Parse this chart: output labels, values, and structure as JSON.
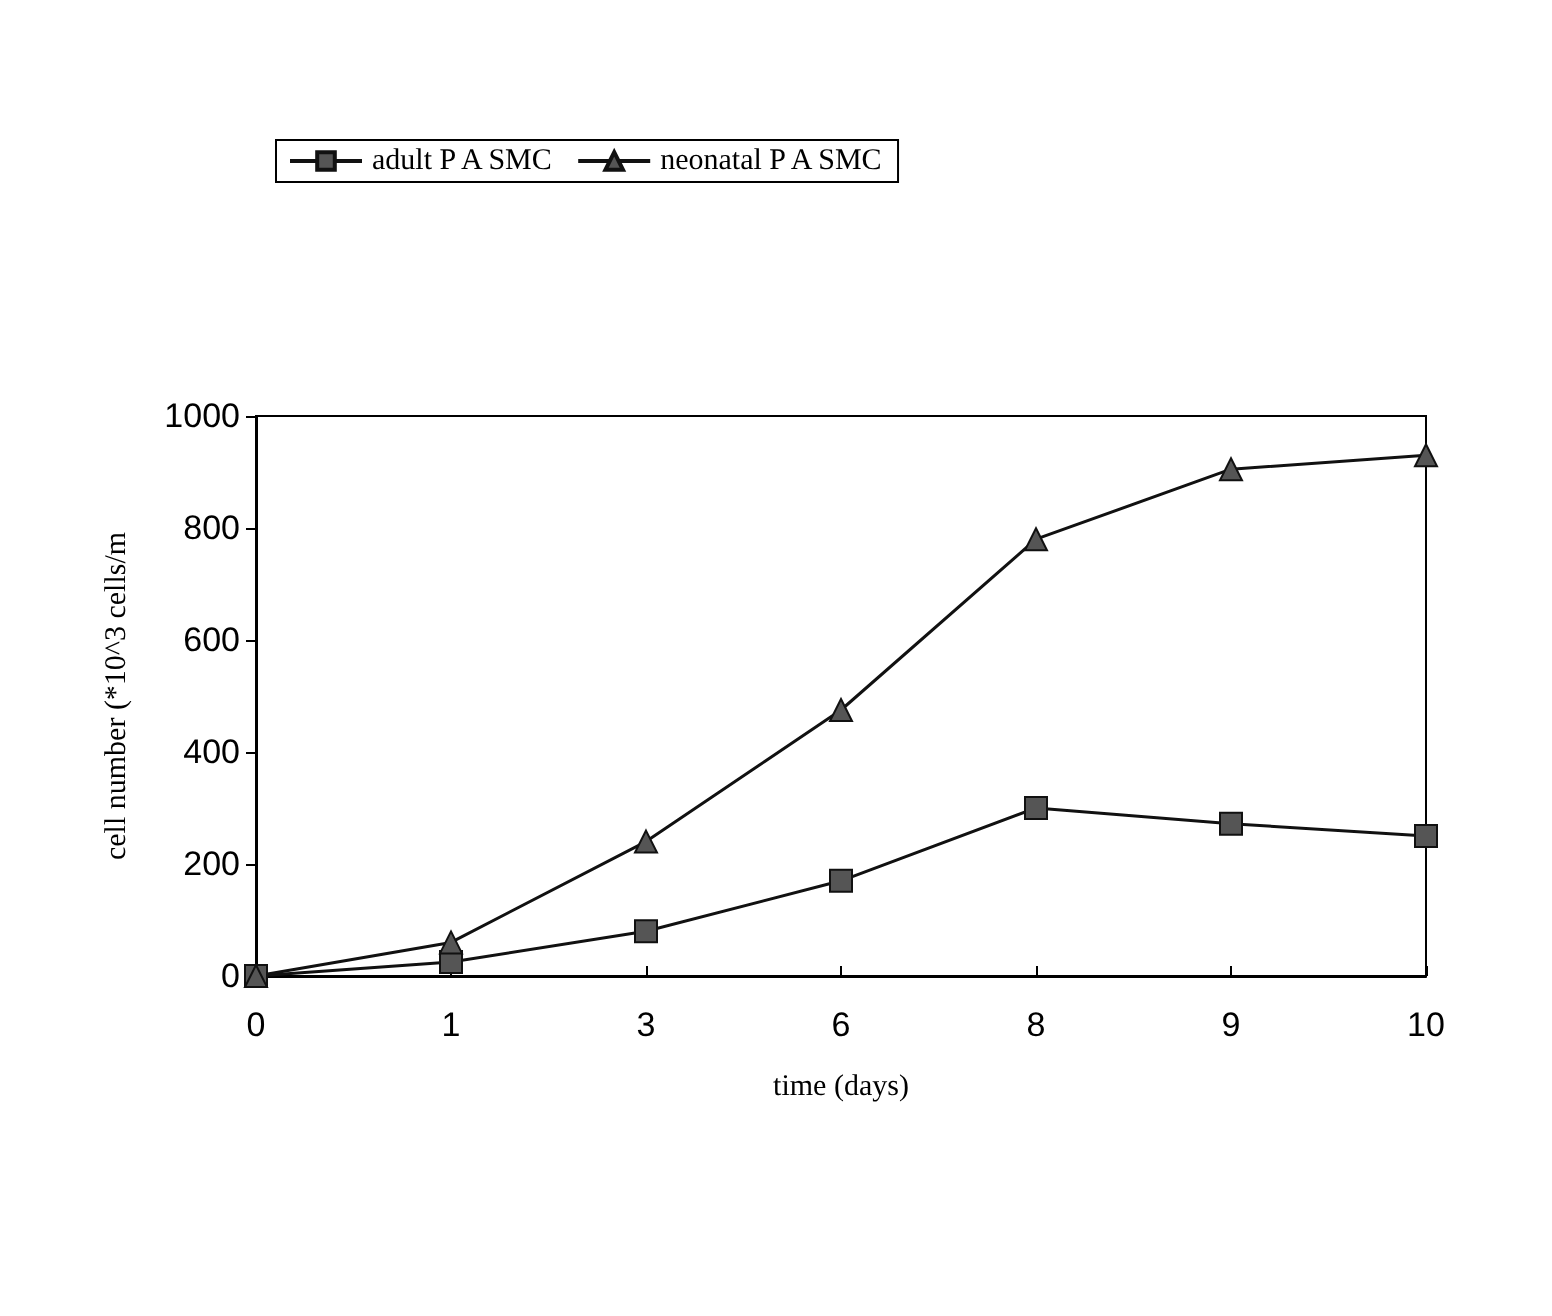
{
  "chart_data": {
    "type": "line",
    "xlabel": "time (days)",
    "ylabel": "cell number (*10^3 cells/m",
    "categories": [
      "0",
      "1",
      "3",
      "6",
      "8",
      "9",
      "10"
    ],
    "series": [
      {
        "name": "adult P A SMC",
        "color": "#555555",
        "marker": "square",
        "values": [
          0,
          25,
          80,
          170,
          300,
          272,
          250
        ]
      },
      {
        "name": "neonatal P A SMC",
        "color": "#555555",
        "marker": "triangle",
        "values": [
          0,
          60,
          240,
          475,
          780,
          905,
          930
        ]
      }
    ],
    "ylim": [
      0,
      1000
    ],
    "yticks": [
      0,
      200,
      400,
      600,
      800,
      1000
    ],
    "grid": false,
    "legend": "top left",
    "line_style": "solid"
  }
}
